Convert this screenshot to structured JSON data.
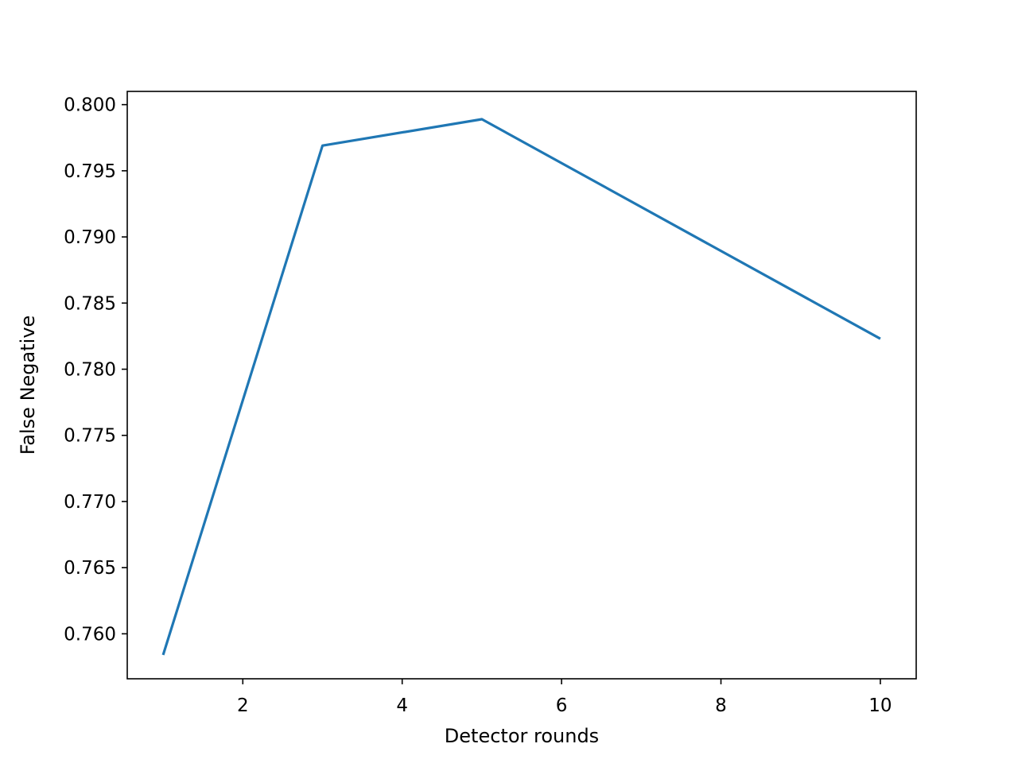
{
  "chart_data": {
    "type": "line",
    "title": "",
    "xlabel": "Detector rounds",
    "ylabel": "False Negative",
    "xlim": [
      0.55,
      10.45
    ],
    "ylim": [
      0.7566,
      0.801
    ],
    "xticks": [
      2,
      4,
      6,
      8,
      10
    ],
    "xtick_labels": [
      "2",
      "4",
      "6",
      "8",
      "10"
    ],
    "yticks": [
      0.76,
      0.765,
      0.77,
      0.775,
      0.78,
      0.785,
      0.79,
      0.795,
      0.8
    ],
    "ytick_labels": [
      "0.760",
      "0.765",
      "0.770",
      "0.775",
      "0.780",
      "0.785",
      "0.790",
      "0.795",
      "0.800"
    ],
    "grid": false,
    "legend": "none",
    "series": [
      {
        "color": "#1f77b4",
        "x": [
          1,
          3,
          5,
          10
        ],
        "y": [
          0.7584,
          0.7969,
          0.7989,
          0.7823
        ]
      }
    ]
  }
}
